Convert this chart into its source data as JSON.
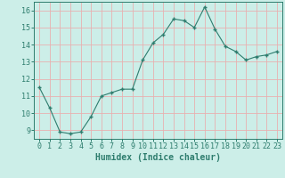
{
  "x": [
    0,
    1,
    2,
    3,
    4,
    5,
    6,
    7,
    8,
    9,
    10,
    11,
    12,
    13,
    14,
    15,
    16,
    17,
    18,
    19,
    20,
    21,
    22,
    23
  ],
  "y": [
    11.5,
    10.3,
    8.9,
    8.8,
    8.9,
    9.8,
    11.0,
    11.2,
    11.4,
    11.4,
    13.1,
    14.1,
    14.6,
    15.5,
    15.4,
    15.0,
    16.2,
    14.9,
    13.9,
    13.6,
    13.1,
    13.3,
    13.4,
    13.6
  ],
  "line_color": "#2e7d6e",
  "marker": "+",
  "marker_size": 3.5,
  "bg_color": "#cceee8",
  "grid_color": "#e8b0b0",
  "axis_color": "#2e7d6e",
  "tick_color": "#2e7d6e",
  "label_color": "#2e7d6e",
  "xlim": [
    -0.5,
    23.5
  ],
  "ylim": [
    8.5,
    16.5
  ],
  "yticks": [
    9,
    10,
    11,
    12,
    13,
    14,
    15,
    16
  ],
  "xtick_labels": [
    "0",
    "1",
    "2",
    "3",
    "4",
    "5",
    "6",
    "7",
    "8",
    "9",
    "10",
    "11",
    "12",
    "13",
    "14",
    "15",
    "16",
    "17",
    "18",
    "19",
    "20",
    "21",
    "22",
    "23"
  ],
  "xlabel": "Humidex (Indice chaleur)",
  "xlabel_fontsize": 7,
  "tick_fontsize": 6
}
